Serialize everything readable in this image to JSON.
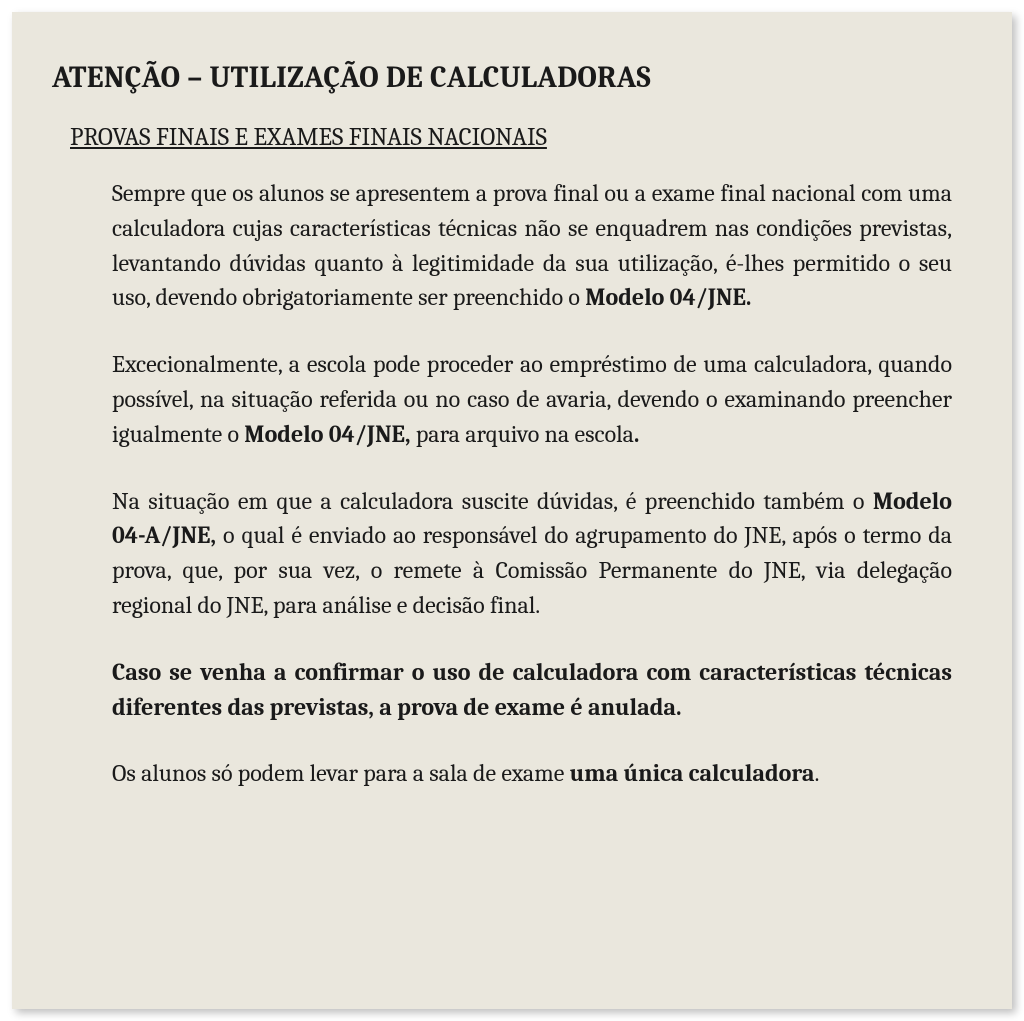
{
  "colors": {
    "background": "#eae7dd",
    "text": "#1a1a1a",
    "page_bg": "#ffffff",
    "shadow": "rgba(0,0,0,0.25)"
  },
  "typography": {
    "font_family": "Cambria, Georgia, serif",
    "title_fontsize": 30,
    "subtitle_fontsize": 25,
    "body_fontsize": 24,
    "line_height": 1.45
  },
  "title": "ATENÇÃO – UTILIZAÇÃO DE CALCULADORAS",
  "subtitle": "PROVAS FINAIS E EXAMES FINAIS NACIONAIS",
  "paragraphs": {
    "p1_a": "Sempre que os alunos se apresentem a prova final ou a exame final nacional com uma calculadora cujas características técnicas não se enquadrem nas condições previstas, levantando dúvidas quanto à legitimidade da sua utilização, é-lhes permitido o seu uso, devendo obrigatoriamente ser preenchido o ",
    "p1_bold": "Modelo 04/JNE.",
    "p2_a": "Excecionalmente, a escola pode proceder ao empréstimo de uma calculadora, quando possível, na situação referida ou no caso de avaria, devendo o examinando preencher igualmente o ",
    "p2_bold": "Modelo 04/JNE,",
    "p2_b": " para arquivo na escola",
    "p2_bold2": ".",
    "p3_a": "Na situação em que a calculadora suscite dúvidas, é preenchido também o ",
    "p3_bold": "Modelo 04-A/JNE,",
    "p3_b": " o qual é enviado ao responsável do agrupamento do JNE, após o termo da prova, que, por sua vez, o remete à Comissão Permanente do JNE, via delegação regional do JNE, para análise e decisão final.",
    "p4_bold": "Caso se venha a confirmar o uso de calculadora com características técnicas diferentes das previstas, a prova de exame é anulada.",
    "p5_a": "Os alunos só podem levar para a sala de exame ",
    "p5_bold": "uma única calculadora",
    "p5_b": "."
  }
}
